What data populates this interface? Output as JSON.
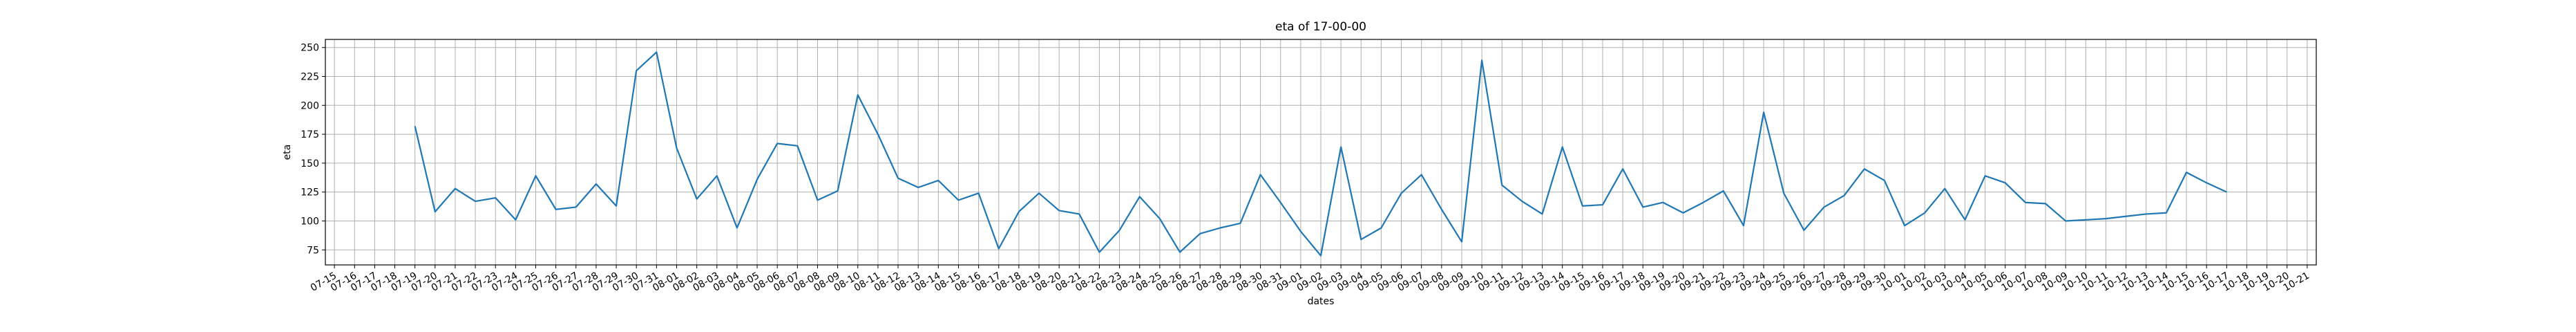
{
  "chart_data": {
    "type": "line",
    "title": "eta of 17-00-00",
    "x_label": "dates",
    "y_label": "eta",
    "categories": [
      "07-15",
      "07-16",
      "07-17",
      "07-18",
      "07-19",
      "07-20",
      "07-21",
      "07-22",
      "07-23",
      "07-24",
      "07-25",
      "07-26",
      "07-27",
      "07-28",
      "07-29",
      "07-30",
      "07-31",
      "08-01",
      "08-02",
      "08-03",
      "08-04",
      "08-05",
      "08-06",
      "08-07",
      "08-08",
      "08-09",
      "08-10",
      "08-11",
      "08-12",
      "08-13",
      "08-14",
      "08-15",
      "08-16",
      "08-17",
      "08-18",
      "08-19",
      "08-20",
      "08-21",
      "08-22",
      "08-23",
      "08-24",
      "08-25",
      "08-26",
      "08-27",
      "08-28",
      "08-29",
      "08-30",
      "08-31",
      "09-01",
      "09-02",
      "09-03",
      "09-04",
      "09-05",
      "09-06",
      "09-07",
      "09-08",
      "09-09",
      "09-10",
      "09-11",
      "09-12",
      "09-13",
      "09-14",
      "09-15",
      "09-16",
      "09-17",
      "09-18",
      "09-19",
      "09-20",
      "09-21",
      "09-22",
      "09-23",
      "09-24",
      "09-25",
      "09-26",
      "09-27",
      "09-28",
      "09-29",
      "09-30",
      "10-01",
      "10-02",
      "10-03",
      "10-04",
      "10-05",
      "10-06",
      "10-07",
      "10-08",
      "10-09",
      "10-10",
      "10-11",
      "10-12",
      "10-13",
      "10-14",
      "10-15",
      "10-16",
      "10-17",
      "10-18",
      "10-19",
      "10-20",
      "10-21"
    ],
    "values": [
      null,
      null,
      null,
      null,
      182,
      108,
      128,
      117,
      120,
      101,
      139,
      110,
      112,
      132,
      113,
      230,
      246,
      163,
      119,
      139,
      94,
      136,
      167,
      165,
      118,
      126,
      209,
      175,
      137,
      129,
      135,
      118,
      124,
      76,
      108,
      124,
      109,
      106,
      73,
      92,
      121,
      102,
      73,
      89,
      94,
      98,
      140,
      116,
      91,
      70,
      164,
      84,
      94,
      124,
      140,
      110,
      82,
      239,
      131,
      117,
      106,
      164,
      113,
      114,
      145,
      112,
      116,
      107,
      116,
      126,
      96,
      194,
      124,
      92,
      112,
      122,
      145,
      135,
      96,
      107,
      128,
      101,
      139,
      133,
      116,
      115,
      100,
      101,
      102,
      104,
      106,
      107,
      142,
      133,
      125,
      null,
      null,
      null,
      null
    ],
    "color": "#1f77b4",
    "ylim": [
      62,
      257
    ],
    "yticks": [
      75,
      100,
      125,
      150,
      175,
      200,
      225,
      250
    ],
    "grid": true
  }
}
